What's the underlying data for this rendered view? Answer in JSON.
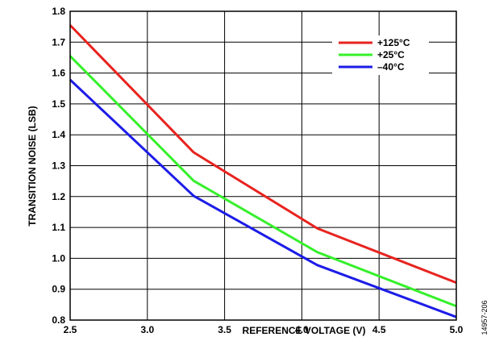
{
  "chart_data": {
    "type": "line",
    "xlabel": "REFERENCE VOLTAGE (V)",
    "ylabel": "TRANSITION NOISE (LSB)",
    "xlim": [
      2.5,
      5.0
    ],
    "ylim": [
      0.8,
      1.8
    ],
    "xticks": [
      "2.5",
      "3.0",
      "3.5",
      "4.0",
      "4.5",
      "5.0"
    ],
    "yticks": [
      "0.8",
      "0.9",
      "1.0",
      "1.1",
      "1.2",
      "1.3",
      "1.4",
      "1.5",
      "1.6",
      "1.7",
      "1.8"
    ],
    "grid": true,
    "legend_position": "top-right",
    "series": [
      {
        "name": "+125°C",
        "color": "#e8231f",
        "x": [
          2.5,
          3.3,
          4.1,
          5.0
        ],
        "y": [
          1.755,
          1.343,
          1.097,
          0.921
        ]
      },
      {
        "name": "+25°C",
        "color": "#35f02a",
        "x": [
          2.5,
          3.3,
          4.1,
          5.0
        ],
        "y": [
          1.655,
          1.251,
          1.02,
          0.845
        ]
      },
      {
        "name": "–40°C",
        "color": "#1c1ce8",
        "x": [
          2.5,
          3.3,
          4.1,
          5.0
        ],
        "y": [
          1.578,
          1.202,
          0.978,
          0.81
        ]
      }
    ]
  },
  "figure_id": "14957-206"
}
